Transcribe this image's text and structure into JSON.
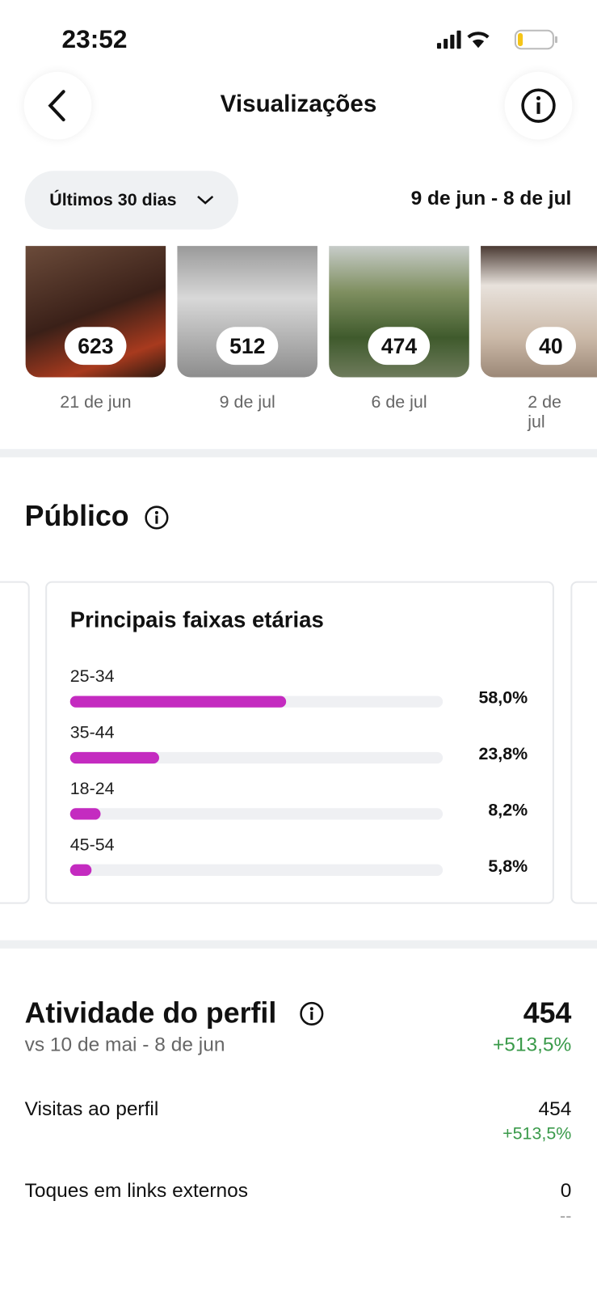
{
  "status_bar": {
    "time": "23:52"
  },
  "header": {
    "title": "Visualizações"
  },
  "filter": {
    "period": "Últimos 30 dias",
    "date_range": "9 de jun - 8 de jul"
  },
  "stories": [
    {
      "views": 623,
      "date": "21 de jun"
    },
    {
      "views": 512,
      "date": "9 de jul"
    },
    {
      "views": 474,
      "date": "6 de jul"
    },
    {
      "views": 40,
      "date": "2 de jul"
    }
  ],
  "audience": {
    "title": "Público"
  },
  "chart_data": {
    "type": "bar",
    "orientation": "horizontal",
    "title": "Principais faixas etárias",
    "categories": [
      "25-34",
      "35-44",
      "18-24",
      "45-54"
    ],
    "values": [
      58.0,
      23.8,
      8.2,
      5.8
    ],
    "value_labels": [
      "58,0%",
      "23,8%",
      "8,2%",
      "5,8%"
    ],
    "xlim": [
      0,
      100
    ],
    "color": "#c42bc0"
  },
  "activity": {
    "title": "Atividade do perfil",
    "comparison": "vs 10 de mai - 8 de jun",
    "total": 454,
    "total_change": "+513,5%",
    "rows": [
      {
        "label": "Visitas ao perfil",
        "value": 454,
        "change": "+513,5%"
      },
      {
        "label": "Toques em links externos",
        "value": 0,
        "change": "--"
      }
    ]
  }
}
